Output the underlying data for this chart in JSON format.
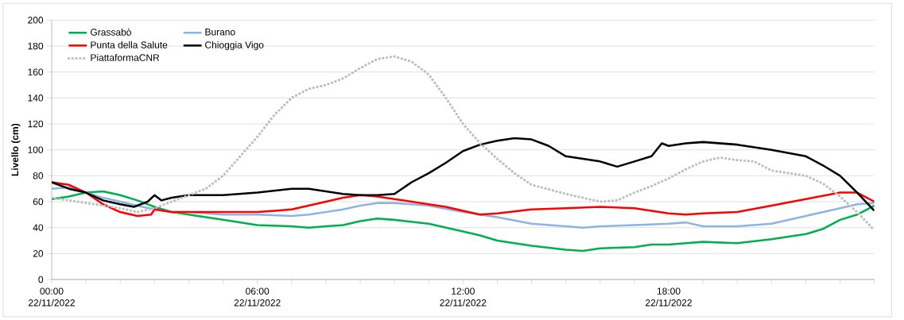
{
  "chart_data": {
    "type": "line",
    "ylabel": "Livello (cm)",
    "ylim": [
      0,
      200
    ],
    "yticks": [
      0,
      20,
      40,
      60,
      80,
      100,
      120,
      140,
      160,
      180,
      200
    ],
    "xlim": [
      "2022-11-22T00:00",
      "2022-11-23T00:00"
    ],
    "xticks": [
      {
        "value": "2022-11-22T00:00",
        "label": "00:00 22/11/2022"
      },
      {
        "value": "2022-11-22T01:00",
        "label": null
      },
      {
        "value": "2022-11-22T02:00",
        "label": null
      },
      {
        "value": "2022-11-22T03:00",
        "label": null
      },
      {
        "value": "2022-11-22T04:00",
        "label": null
      },
      {
        "value": "2022-11-22T05:00",
        "label": null
      },
      {
        "value": "2022-11-22T06:00",
        "label": "06:00 22/11/2022"
      },
      {
        "value": "2022-11-22T07:00",
        "label": null
      },
      {
        "value": "2022-11-22T08:00",
        "label": null
      },
      {
        "value": "2022-11-22T09:00",
        "label": null
      },
      {
        "value": "2022-11-22T10:00",
        "label": null
      },
      {
        "value": "2022-11-22T11:00",
        "label": null
      },
      {
        "value": "2022-11-22T12:00",
        "label": "12:00 22/11/2022"
      },
      {
        "value": "2022-11-22T13:00",
        "label": null
      },
      {
        "value": "2022-11-22T14:00",
        "label": null
      },
      {
        "value": "2022-11-22T15:00",
        "label": null
      },
      {
        "value": "2022-11-22T16:00",
        "label": null
      },
      {
        "value": "2022-11-22T17:00",
        "label": null
      },
      {
        "value": "2022-11-22T18:00",
        "label": "18:00 22/11/2022"
      },
      {
        "value": "2022-11-22T19:00",
        "label": null
      },
      {
        "value": "2022-11-22T20:00",
        "label": null
      },
      {
        "value": "2022-11-22T21:00",
        "label": null
      },
      {
        "value": "2022-11-22T22:00",
        "label": null
      },
      {
        "value": "2022-11-22T23:00",
        "label": null
      },
      {
        "value": "2022-11-23T00:00",
        "label": null
      }
    ],
    "grid": "y",
    "legend": "top left",
    "marker": "none",
    "series": [
      {
        "name": "Grassabò",
        "color": "#00b050",
        "line_style": "solid",
        "x": [
          "2022-11-22T00:00",
          "2022-11-22T00:30",
          "2022-11-22T01:00",
          "2022-11-22T01:30",
          "2022-11-22T02:00",
          "2022-11-22T02:30",
          "2022-11-22T03:00",
          "2022-11-22T03:30",
          "2022-11-22T04:00",
          "2022-11-22T05:00",
          "2022-11-22T06:00",
          "2022-11-22T07:00",
          "2022-11-22T07:30",
          "2022-11-22T08:00",
          "2022-11-22T08:30",
          "2022-11-22T09:00",
          "2022-11-22T09:30",
          "2022-11-22T10:00",
          "2022-11-22T11:00",
          "2022-11-22T12:00",
          "2022-11-22T12:30",
          "2022-11-22T13:00",
          "2022-11-22T14:00",
          "2022-11-22T15:00",
          "2022-11-22T15:30",
          "2022-11-22T16:00",
          "2022-11-22T17:00",
          "2022-11-22T17:30",
          "2022-11-22T18:00",
          "2022-11-22T18:30",
          "2022-11-22T19:00",
          "2022-11-22T20:00",
          "2022-11-22T21:00",
          "2022-11-22T22:00",
          "2022-11-22T22:30",
          "2022-11-22T23:00",
          "2022-11-22T23:30",
          "2022-11-23T00:00"
        ],
        "values": [
          62,
          64,
          67,
          68,
          65,
          61,
          56,
          52,
          50,
          46,
          42,
          41,
          40,
          41,
          42,
          45,
          47,
          46,
          43,
          37,
          34,
          30,
          26,
          23,
          22,
          24,
          25,
          27,
          27,
          28,
          29,
          28,
          31,
          35,
          39,
          46,
          50,
          57
        ]
      },
      {
        "name": "Burano",
        "color": "#8eb4e3",
        "line_style": "solid",
        "x": [
          "2022-11-22T00:00",
          "2022-11-22T00:30",
          "2022-11-22T01:00",
          "2022-11-22T01:30",
          "2022-11-22T02:00",
          "2022-11-22T02:30",
          "2022-11-22T03:00",
          "2022-11-22T03:30",
          "2022-11-22T04:00",
          "2022-11-22T05:00",
          "2022-11-22T06:00",
          "2022-11-22T07:00",
          "2022-11-22T07:30",
          "2022-11-22T08:00",
          "2022-11-22T08:30",
          "2022-11-22T09:00",
          "2022-11-22T09:30",
          "2022-11-22T10:00",
          "2022-11-22T10:30",
          "2022-11-22T11:00",
          "2022-11-22T12:00",
          "2022-11-22T13:00",
          "2022-11-22T14:00",
          "2022-11-22T15:00",
          "2022-11-22T15:30",
          "2022-11-22T16:00",
          "2022-11-22T17:00",
          "2022-11-22T18:00",
          "2022-11-22T18:30",
          "2022-11-22T19:00",
          "2022-11-22T20:00",
          "2022-11-22T21:00",
          "2022-11-22T22:00",
          "2022-11-22T23:00",
          "2022-11-22T23:30",
          "2022-11-23T00:00"
        ],
        "values": [
          70,
          71,
          67,
          63,
          60,
          57,
          54,
          52,
          52,
          50,
          50,
          49,
          50,
          52,
          54,
          57,
          59,
          59,
          58,
          57,
          52,
          48,
          43,
          41,
          40,
          41,
          42,
          43,
          44,
          41,
          41,
          43,
          49,
          55,
          58,
          59
        ]
      },
      {
        "name": "Punta della Salute",
        "color": "#ff0000",
        "line_style": "solid",
        "x": [
          "2022-11-22T00:00",
          "2022-11-22T00:30",
          "2022-11-22T01:00",
          "2022-11-22T01:30",
          "2022-11-22T02:00",
          "2022-11-22T02:30",
          "2022-11-22T02:54",
          "2022-11-22T03:00",
          "2022-11-22T03:30",
          "2022-11-22T04:00",
          "2022-11-22T05:00",
          "2022-11-22T06:00",
          "2022-11-22T06:30",
          "2022-11-22T07:00",
          "2022-11-22T07:30",
          "2022-11-22T08:00",
          "2022-11-22T08:30",
          "2022-11-22T09:00",
          "2022-11-22T09:30",
          "2022-11-22T10:00",
          "2022-11-22T11:00",
          "2022-11-22T11:30",
          "2022-11-22T12:00",
          "2022-11-22T12:30",
          "2022-11-22T13:00",
          "2022-11-22T14:00",
          "2022-11-22T15:00",
          "2022-11-22T16:00",
          "2022-11-22T17:00",
          "2022-11-22T18:00",
          "2022-11-22T18:30",
          "2022-11-22T19:00",
          "2022-11-22T20:00",
          "2022-11-22T21:00",
          "2022-11-22T22:00",
          "2022-11-22T23:00",
          "2022-11-22T23:30",
          "2022-11-23T00:00"
        ],
        "values": [
          75,
          73,
          67,
          58,
          52,
          49,
          50,
          54,
          52,
          52,
          52,
          52,
          53,
          54,
          57,
          60,
          63,
          65,
          64,
          62,
          58,
          56,
          53,
          50,
          51,
          54,
          55,
          56,
          55,
          51,
          50,
          51,
          52,
          57,
          62,
          67,
          67,
          60
        ]
      },
      {
        "name": "Chioggia Vigo",
        "color": "#000000",
        "line_style": "solid",
        "x": [
          "2022-11-22T00:00",
          "2022-11-22T00:30",
          "2022-11-22T01:00",
          "2022-11-22T01:30",
          "2022-11-22T02:00",
          "2022-11-22T02:24",
          "2022-11-22T02:48",
          "2022-11-22T03:00",
          "2022-11-22T03:12",
          "2022-11-22T03:30",
          "2022-11-22T04:00",
          "2022-11-22T05:00",
          "2022-11-22T06:00",
          "2022-11-22T07:00",
          "2022-11-22T07:30",
          "2022-11-22T08:00",
          "2022-11-22T08:30",
          "2022-11-22T09:00",
          "2022-11-22T09:30",
          "2022-11-22T10:00",
          "2022-11-22T10:30",
          "2022-11-22T11:00",
          "2022-11-22T11:30",
          "2022-11-22T12:00",
          "2022-11-22T12:30",
          "2022-11-22T13:00",
          "2022-11-22T13:30",
          "2022-11-22T14:00",
          "2022-11-22T14:30",
          "2022-11-22T15:00",
          "2022-11-22T16:00",
          "2022-11-22T16:30",
          "2022-11-22T17:00",
          "2022-11-22T17:30",
          "2022-11-22T17:48",
          "2022-11-22T18:00",
          "2022-11-22T18:30",
          "2022-11-22T19:00",
          "2022-11-22T20:00",
          "2022-11-22T21:00",
          "2022-11-22T22:00",
          "2022-11-22T22:30",
          "2022-11-22T23:00",
          "2022-11-22T23:30",
          "2022-11-23T00:00"
        ],
        "values": [
          75,
          70,
          67,
          61,
          58,
          56,
          60,
          65,
          61,
          63,
          65,
          65,
          67,
          70,
          70,
          68,
          66,
          65,
          65,
          66,
          75,
          82,
          90,
          99,
          104,
          107,
          109,
          108,
          103,
          95,
          91,
          87,
          91,
          95,
          105,
          103,
          105,
          106,
          104,
          100,
          95,
          88,
          80,
          67,
          53
        ]
      },
      {
        "name": "PiattaformaCNR",
        "color": "#bfbfbf",
        "line_style": "dotted",
        "x": [
          "2022-11-22T00:00",
          "2022-11-22T01:00",
          "2022-11-22T02:00",
          "2022-11-22T02:30",
          "2022-11-22T03:00",
          "2022-11-22T04:00",
          "2022-11-22T04:30",
          "2022-11-22T05:00",
          "2022-11-22T05:30",
          "2022-11-22T06:00",
          "2022-11-22T06:30",
          "2022-11-22T07:00",
          "2022-11-22T07:30",
          "2022-11-22T08:00",
          "2022-11-22T08:30",
          "2022-11-22T09:00",
          "2022-11-22T09:30",
          "2022-11-22T10:00",
          "2022-11-22T10:30",
          "2022-11-22T11:00",
          "2022-11-22T11:30",
          "2022-11-22T12:00",
          "2022-11-22T12:30",
          "2022-11-22T13:00",
          "2022-11-22T13:30",
          "2022-11-22T14:00",
          "2022-11-22T15:00",
          "2022-11-22T15:30",
          "2022-11-22T16:00",
          "2022-11-22T16:30",
          "2022-11-22T17:00",
          "2022-11-22T17:30",
          "2022-11-22T18:00",
          "2022-11-22T18:30",
          "2022-11-22T19:00",
          "2022-11-22T19:30",
          "2022-11-22T20:00",
          "2022-11-22T20:30",
          "2022-11-22T21:00",
          "2022-11-22T22:00",
          "2022-11-22T22:30",
          "2022-11-22T23:00",
          "2022-11-22T23:30",
          "2022-11-23T00:00"
        ],
        "values": [
          63,
          59,
          55,
          52,
          55,
          65,
          70,
          80,
          95,
          110,
          127,
          140,
          147,
          150,
          155,
          163,
          170,
          172,
          168,
          158,
          140,
          120,
          105,
          93,
          82,
          73,
          66,
          63,
          60,
          61,
          67,
          72,
          78,
          85,
          91,
          94,
          92,
          91,
          84,
          80,
          74,
          64,
          52,
          38
        ]
      }
    ]
  }
}
